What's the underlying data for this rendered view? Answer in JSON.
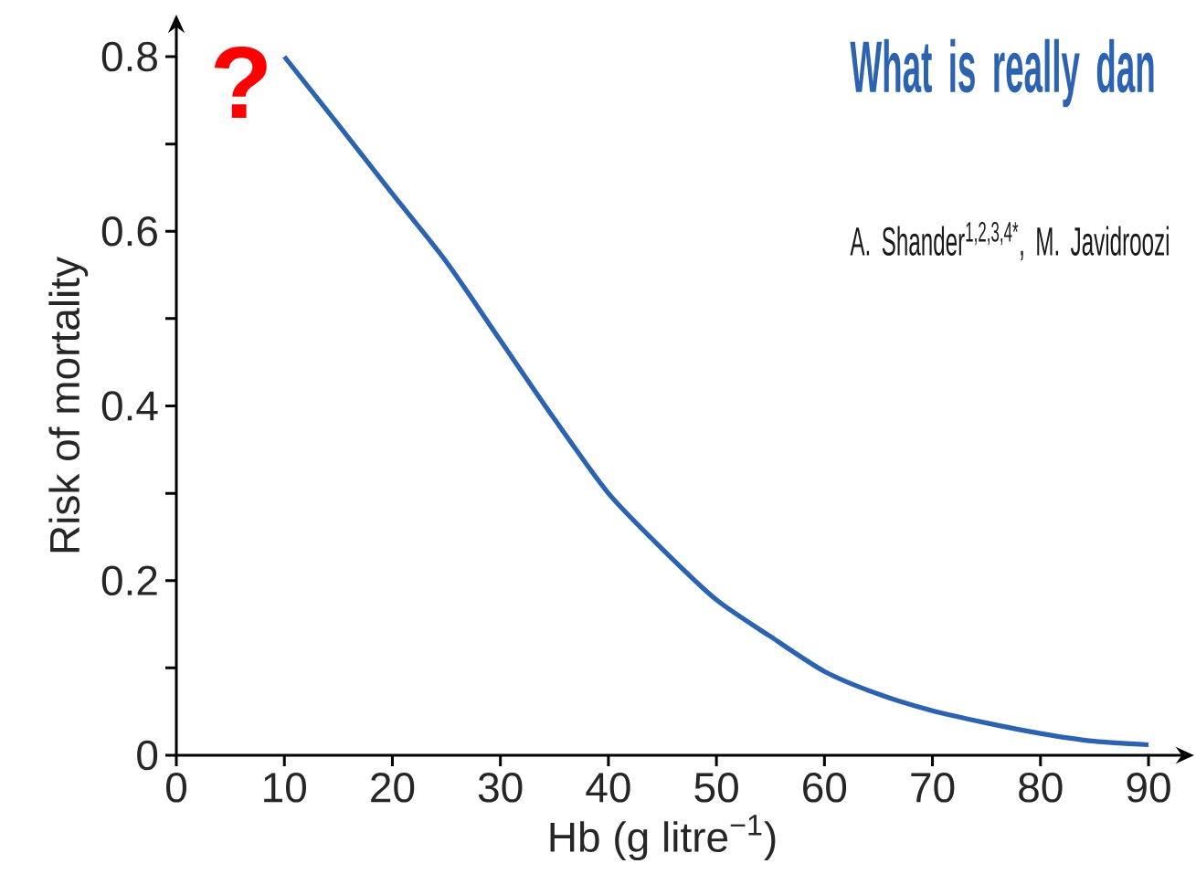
{
  "chart_data": {
    "type": "line",
    "title": "What is really dan",
    "subtitle": "A. Shander$^{1,2,3,4*}$, M. Javidroozi",
    "annotations": [
      "?"
    ],
    "xlabel": "Hb (g litre$^{−1}$)",
    "ylabel": "Risk of mortality",
    "x": [
      10,
      15,
      20,
      25,
      30,
      35,
      40,
      45,
      50,
      55,
      60,
      65,
      70,
      75,
      80,
      85,
      90
    ],
    "series": [
      {
        "color": "#2b63b0",
        "values": [
          0.8,
          0.722,
          0.643,
          0.565,
          0.475,
          0.385,
          0.3,
          0.236,
          0.178,
          0.136,
          0.096,
          0.07,
          0.051,
          0.037,
          0.025,
          0.016,
          0.012
        ]
      }
    ],
    "xlim": [
      0,
      90
    ],
    "ylim": [
      0,
      0.8
    ],
    "xticks": [
      0,
      10,
      20,
      30,
      40,
      50,
      60,
      70,
      80,
      90
    ],
    "yticks": [
      0,
      {
        "value": 0.1,
        "label": null
      },
      0.2,
      {
        "value": 0.3,
        "label": null
      },
      0.4,
      {
        "value": 0.5,
        "label": null
      },
      0.6,
      {
        "value": 0.7,
        "label": null
      },
      0.8
    ]
  }
}
